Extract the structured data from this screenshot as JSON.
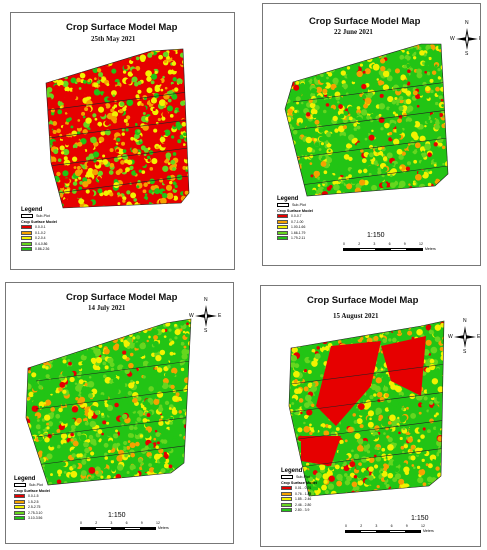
{
  "panels": [
    {
      "title": "Crop Surface Model Map",
      "date": "25th May 2021",
      "compass": [
        "N",
        "W",
        "E",
        "S"
      ],
      "legend_title": "Legend",
      "subplot_label": "Sub-Plot",
      "model_label": "Crop Surface Model",
      "classes": [
        {
          "label": "0.0-0.1",
          "color": "#e60000"
        },
        {
          "label": "0.1-0.2",
          "color": "#f5a200"
        },
        {
          "label": "0.2-0.4",
          "color": "#f2f200"
        },
        {
          "label": "0.4-0.86",
          "color": "#66d61f"
        },
        {
          "label": "0.86-2.36",
          "color": "#22c415"
        }
      ],
      "scale": "1:150",
      "ticks": [
        "0",
        "2",
        "3",
        "6",
        "9",
        "12"
      ],
      "units": "Meters",
      "dominant": "red"
    },
    {
      "title": "Crop Surface Model Map",
      "date": "22 June 2021",
      "compass": [
        "N",
        "W",
        "E",
        "S"
      ],
      "legend_title": "Legend",
      "subplot_label": "Sub-Plot",
      "model_label": "Crop Surface Model",
      "classes": [
        {
          "label": "0.0-0.7",
          "color": "#e60000"
        },
        {
          "label": "0.7-1.00",
          "color": "#f5a200"
        },
        {
          "label": "1.00-1.66",
          "color": "#f2f200"
        },
        {
          "label": "1.66-1.79",
          "color": "#66d61f"
        },
        {
          "label": "1.79-2.11",
          "color": "#22c415"
        }
      ],
      "scale": "1:150",
      "ticks": [
        "0",
        "2",
        "3",
        "6",
        "9",
        "12"
      ],
      "units": "Meters",
      "dominant": "green"
    },
    {
      "title": "Crop Surface Model Map",
      "date": "14 July 2021",
      "compass": [
        "N",
        "W",
        "E",
        "S"
      ],
      "legend_title": "Legend",
      "subplot_label": "Sub-Plot",
      "model_label": "Crop Surface Model",
      "classes": [
        {
          "label": "0.0-1.5",
          "color": "#e60000"
        },
        {
          "label": "1.5-2.5",
          "color": "#f5a200"
        },
        {
          "label": "2.5-2.75",
          "color": "#f2f200"
        },
        {
          "label": "2.75-3.10",
          "color": "#66d61f"
        },
        {
          "label": "3.10-3.56",
          "color": "#22c415"
        }
      ],
      "scale": "1:150",
      "ticks": [
        "0",
        "2",
        "3",
        "6",
        "9",
        "12"
      ],
      "units": "Meters",
      "dominant": "green"
    },
    {
      "title": "Crop Surface Model Map",
      "date": "15 August 2021",
      "compass": [
        "N",
        "W",
        "E",
        "S"
      ],
      "legend_title": "Legend",
      "subplot_label": "Sub-Plot",
      "model_label": "Crop Surface Model",
      "classes": [
        {
          "label": "0.01 - 0.76",
          "color": "#e60000"
        },
        {
          "label": "0.76 - 1.85",
          "color": "#f5a200"
        },
        {
          "label": "1.85 - 2.46",
          "color": "#f2f200"
        },
        {
          "label": "2.46 - 2.80",
          "color": "#66d61f"
        },
        {
          "label": "2.80 - 3.9",
          "color": "#22c415"
        }
      ],
      "scale": "1:150",
      "ticks": [
        "0",
        "2",
        "3",
        "6",
        "9",
        "12"
      ],
      "units": "Meters",
      "dominant": "patchy"
    }
  ]
}
